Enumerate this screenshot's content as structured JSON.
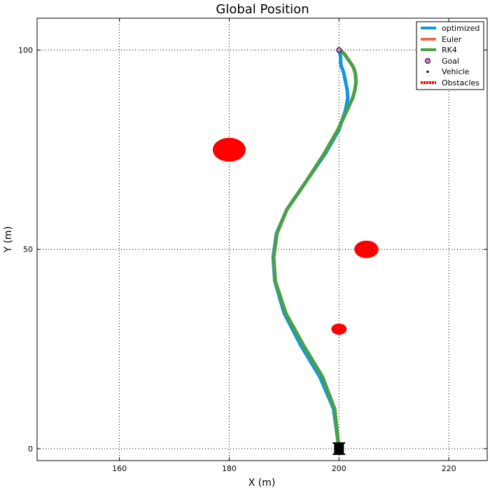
{
  "chart_data": {
    "type": "line",
    "title": "Global Position",
    "xlabel": "X (m)",
    "ylabel": "Y (m)",
    "xlim": [
      145,
      227
    ],
    "ylim": [
      -3,
      108
    ],
    "xticks": [
      160,
      180,
      200,
      220
    ],
    "yticks": [
      0,
      50,
      100
    ],
    "grid": true,
    "legend_position": "top-right",
    "colors": {
      "optimized": "#0f97e6",
      "euler": "#e4704e",
      "rk4": "#47a147",
      "goal": "#d879d8",
      "vehicle": "#000000",
      "obstacle": "#ff0000"
    },
    "series": [
      {
        "name": "optimized",
        "x": [
          200.0,
          199.0,
          196.5,
          193.0,
          190.0,
          188.3,
          188.0,
          188.6,
          190.5,
          194.0,
          197.5,
          200.0,
          201.2,
          201.6,
          201.5,
          201.2,
          200.9,
          200.7,
          200.4,
          200.3,
          200.3,
          200.2,
          200.1,
          200.0
        ],
        "y": [
          0,
          10,
          18,
          26,
          34,
          42,
          48,
          54,
          60,
          67,
          74,
          80,
          85,
          88,
          90,
          92,
          94,
          95,
          96,
          97,
          98,
          99,
          99.6,
          100
        ]
      },
      {
        "name": "Euler",
        "x": [
          200.0,
          199.2,
          197.0,
          193.5,
          190.3,
          188.4,
          188.1,
          188.7,
          190.5,
          194.0,
          197.3,
          199.8,
          201.5,
          202.5,
          202.9,
          203.1,
          203.0,
          202.8,
          202.5,
          202.0,
          201.5,
          201.0,
          200.5,
          200.0
        ],
        "y": [
          0,
          10,
          18,
          26,
          34,
          42,
          48,
          54,
          60,
          67,
          74,
          80,
          85,
          88,
          90,
          92,
          94,
          95,
          96,
          97,
          98,
          99,
          99.6,
          100
        ]
      },
      {
        "name": "RK4",
        "x": [
          200.0,
          199.2,
          197.0,
          193.5,
          190.3,
          188.4,
          188.1,
          188.7,
          190.5,
          194.0,
          197.3,
          199.8,
          201.5,
          202.5,
          202.9,
          203.1,
          203.0,
          202.8,
          202.5,
          202.0,
          201.5,
          201.0,
          200.5,
          200.0
        ],
        "y": [
          0,
          10,
          18,
          26,
          34,
          42,
          48,
          54,
          60,
          67,
          74,
          80,
          85,
          88,
          90,
          92,
          94,
          95,
          96,
          97,
          98,
          99,
          99.6,
          100
        ]
      }
    ],
    "goal": {
      "name": "Goal",
      "x": 200,
      "y": 100
    },
    "vehicle": {
      "name": "Vehicle",
      "x": 200,
      "y": 0
    },
    "obstacles": {
      "name": "Obstacles",
      "items": [
        {
          "x": 180,
          "y": 75,
          "r": 3
        },
        {
          "x": 205,
          "y": 50,
          "r": 2.2
        },
        {
          "x": 200,
          "y": 30,
          "r": 1.4
        }
      ]
    }
  }
}
